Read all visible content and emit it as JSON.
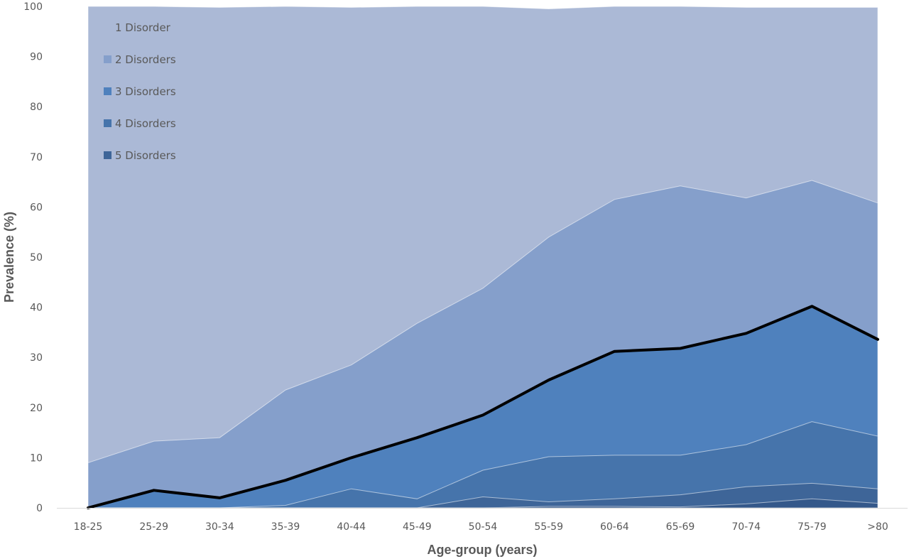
{
  "chart_data": {
    "type": "area",
    "stacked": false,
    "title": "",
    "xlabel": "Age-group (years)",
    "ylabel": "Prevalence (%)",
    "ylim": [
      0,
      100
    ],
    "yticks": [
      0,
      10,
      20,
      30,
      40,
      50,
      60,
      70,
      80,
      90,
      100
    ],
    "grid": false,
    "legend_position": "top-left",
    "categories": [
      "18-25",
      "25-29",
      "30-34",
      "35-39",
      "40-44",
      "45-49",
      "50-54",
      "55-59",
      "60-64",
      "65-69",
      "70-74",
      "75-79",
      ">80"
    ],
    "series": [
      {
        "name": "1 Disorder",
        "color": "#abb9d6",
        "values": [
          100,
          100,
          99.8,
          100,
          99.8,
          100,
          100,
          99.5,
          100,
          100,
          99.8,
          99.8,
          99.8
        ]
      },
      {
        "name": "2 Disorders",
        "color": "#859fcb",
        "values": [
          9,
          13.3,
          14,
          23.5,
          28.5,
          36.8,
          43.8,
          54,
          61.5,
          64.2,
          61.8,
          65.3,
          60.8
        ]
      },
      {
        "name": "3 Disorders",
        "color": "#4f81bd",
        "values": [
          0,
          3.5,
          2,
          5.5,
          10,
          14,
          18.5,
          25.5,
          31.2,
          31.8,
          34.8,
          40.2,
          33.6
        ]
      },
      {
        "name": "4 Disorders",
        "color": "#4674ab",
        "values": [
          0,
          0,
          0,
          0.5,
          3.8,
          1.8,
          7.5,
          10.2,
          10.5,
          10.5,
          12.6,
          17.2,
          14.3
        ]
      },
      {
        "name": "5 Disorders",
        "color": "#3e6598",
        "values": [
          0,
          0,
          0,
          0,
          0,
          0,
          2.2,
          1.2,
          1.8,
          2.6,
          4.2,
          4.9,
          3.8
        ]
      },
      {
        "name": "",
        "color": "#34588a",
        "values": [
          0,
          0,
          0,
          0,
          0,
          0,
          0,
          0.3,
          0.3,
          0.2,
          0.8,
          1.8,
          0.9
        ]
      }
    ],
    "highlight_line": {
      "series_index": 2,
      "color": "#000000"
    }
  }
}
